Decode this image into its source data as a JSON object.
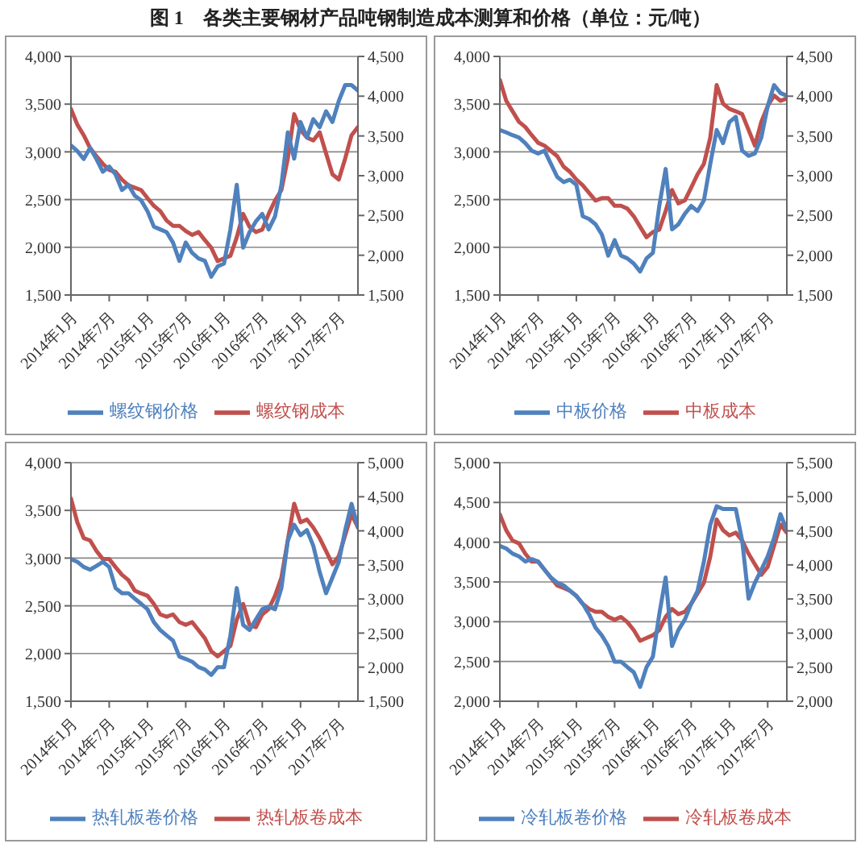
{
  "chart_data": [
    {
      "type": "line",
      "title": "图 1　各类主要钢材产品吨钢制造成本测算和价格（单位：元/吨）",
      "x": [
        "2014-01",
        "2014-02",
        "2014-03",
        "2014-04",
        "2014-05",
        "2014-06",
        "2014-07",
        "2014-08",
        "2014-09",
        "2014-10",
        "2014-11",
        "2014-12",
        "2015-01",
        "2015-02",
        "2015-03",
        "2015-04",
        "2015-05",
        "2015-06",
        "2015-07",
        "2015-08",
        "2015-09",
        "2015-10",
        "2015-11",
        "2015-12",
        "2016-01",
        "2016-02",
        "2016-03",
        "2016-04",
        "2016-05",
        "2016-06",
        "2016-07",
        "2016-08",
        "2016-09",
        "2016-10",
        "2016-11",
        "2016-12",
        "2017-01",
        "2017-02",
        "2017-03",
        "2017-04",
        "2017-05",
        "2017-06",
        "2017-07",
        "2017-08",
        "2017-09",
        "2017-10"
      ],
      "xlim": [
        "2014-01",
        "2017-10"
      ],
      "xticks": [
        {
          "value": "2014-01",
          "label": "2014年1月"
        },
        {
          "value": "2014-07",
          "label": "2014年7月"
        },
        {
          "value": "2015-01",
          "label": "2015年1月"
        },
        {
          "value": "2015-07",
          "label": "2015年7月"
        },
        {
          "value": "2016-01",
          "label": "2016年1月"
        },
        {
          "value": "2016-07",
          "label": "2016年7月"
        },
        {
          "value": "2017-01",
          "label": "2017年1月"
        },
        {
          "value": "2017-07",
          "label": "2017年7月"
        }
      ],
      "ylim": [
        1500,
        4000
      ],
      "yticks": [
        {
          "value": 1500,
          "label": "1,500"
        },
        {
          "value": 2000,
          "label": "2,000"
        },
        {
          "value": 2500,
          "label": "2,500"
        },
        {
          "value": 3000,
          "label": "3,000"
        },
        {
          "value": 3500,
          "label": "3,500"
        },
        {
          "value": 4000,
          "label": "4,000"
        }
      ],
      "y2lim": [
        1500,
        4500
      ],
      "y2ticks": [
        {
          "value": 1500,
          "label": "1,500"
        },
        {
          "value": 2000,
          "label": "2,000"
        },
        {
          "value": 2500,
          "label": "2,500"
        },
        {
          "value": 3000,
          "label": "3,000"
        },
        {
          "value": 3500,
          "label": "3,500"
        },
        {
          "value": 4000,
          "label": "4,000"
        },
        {
          "value": 4500,
          "label": "4,500"
        }
      ],
      "grid": "y",
      "legend": "bottom",
      "marker": "none",
      "line_style": "solid",
      "series": [
        {
          "name": "螺纹钢成本",
          "color": "#c0504d",
          "values": [
            3450,
            3285,
            3175,
            3040,
            2955,
            2875,
            2810,
            2790,
            2710,
            2650,
            2625,
            2600,
            2515,
            2435,
            2380,
            2280,
            2225,
            2225,
            2170,
            2130,
            2160,
            2075,
            1995,
            1855,
            1885,
            1910,
            2105,
            2350,
            2215,
            2160,
            2185,
            2350,
            2490,
            2600,
            2930,
            3395,
            3230,
            3150,
            3120,
            3205,
            2985,
            2765,
            2710,
            2930,
            3175,
            3260
          ]
        },
        {
          "name": "螺纹钢价格",
          "color": "#4f81bd",
          "axis": "y2",
          "values": [
            3380,
            3310,
            3210,
            3350,
            3210,
            3050,
            3115,
            3015,
            2820,
            2885,
            2750,
            2690,
            2555,
            2360,
            2325,
            2290,
            2160,
            1930,
            2160,
            2030,
            1960,
            1930,
            1730,
            1860,
            1895,
            2325,
            2885,
            2095,
            2290,
            2425,
            2520,
            2325,
            2490,
            2885,
            3545,
            3215,
            3675,
            3480,
            3710,
            3610,
            3810,
            3675,
            3940,
            4140,
            4140,
            4070
          ]
        }
      ]
    },
    {
      "type": "line",
      "x": [
        "2014-01",
        "2014-02",
        "2014-03",
        "2014-04",
        "2014-05",
        "2014-06",
        "2014-07",
        "2014-08",
        "2014-09",
        "2014-10",
        "2014-11",
        "2014-12",
        "2015-01",
        "2015-02",
        "2015-03",
        "2015-04",
        "2015-05",
        "2015-06",
        "2015-07",
        "2015-08",
        "2015-09",
        "2015-10",
        "2015-11",
        "2015-12",
        "2016-01",
        "2016-02",
        "2016-03",
        "2016-04",
        "2016-05",
        "2016-06",
        "2016-07",
        "2016-08",
        "2016-09",
        "2016-10",
        "2016-11",
        "2016-12",
        "2017-01",
        "2017-02",
        "2017-03",
        "2017-04",
        "2017-05",
        "2017-06",
        "2017-07",
        "2017-08",
        "2017-09",
        "2017-10"
      ],
      "xlim": [
        "2014-01",
        "2017-10"
      ],
      "xticks": [
        {
          "value": "2014-01",
          "label": "2014年1月"
        },
        {
          "value": "2014-07",
          "label": "2014年7月"
        },
        {
          "value": "2015-01",
          "label": "2015年1月"
        },
        {
          "value": "2015-07",
          "label": "2015年7月"
        },
        {
          "value": "2016-01",
          "label": "2016年1月"
        },
        {
          "value": "2016-07",
          "label": "2016年7月"
        },
        {
          "value": "2017-01",
          "label": "2017年1月"
        },
        {
          "value": "2017-07",
          "label": "2017年7月"
        }
      ],
      "ylim": [
        1500,
        4000
      ],
      "yticks": [
        {
          "value": 1500,
          "label": "1,500"
        },
        {
          "value": 2000,
          "label": "2,000"
        },
        {
          "value": 2500,
          "label": "2,500"
        },
        {
          "value": 3000,
          "label": "3,000"
        },
        {
          "value": 3500,
          "label": "3,500"
        },
        {
          "value": 4000,
          "label": "4,000"
        }
      ],
      "y2lim": [
        1500,
        4500
      ],
      "y2ticks": [
        {
          "value": 1500,
          "label": "1,500"
        },
        {
          "value": 2000,
          "label": "2,000"
        },
        {
          "value": 2500,
          "label": "2,500"
        },
        {
          "value": 3000,
          "label": "3,000"
        },
        {
          "value": 3500,
          "label": "3,500"
        },
        {
          "value": 4000,
          "label": "4,000"
        },
        {
          "value": 4500,
          "label": "4,500"
        }
      ],
      "grid": "y",
      "legend": "bottom",
      "marker": "none",
      "line_style": "solid",
      "series": [
        {
          "name": "中板成本",
          "color": "#c0504d",
          "values": [
            3755,
            3535,
            3425,
            3315,
            3260,
            3175,
            3095,
            3065,
            3010,
            2955,
            2845,
            2790,
            2710,
            2650,
            2570,
            2490,
            2515,
            2515,
            2435,
            2435,
            2405,
            2325,
            2215,
            2105,
            2160,
            2185,
            2380,
            2600,
            2460,
            2490,
            2625,
            2765,
            2875,
            3150,
            3700,
            3505,
            3450,
            3425,
            3395,
            3230,
            3065,
            3315,
            3480,
            3590,
            3535,
            3560
          ]
        },
        {
          "name": "中板价格",
          "color": "#4f81bd",
          "axis": "y2",
          "values": [
            3575,
            3545,
            3510,
            3480,
            3410,
            3315,
            3280,
            3315,
            3150,
            2985,
            2920,
            2950,
            2885,
            2490,
            2455,
            2390,
            2260,
            1995,
            2190,
            1995,
            1960,
            1895,
            1795,
            1960,
            2030,
            2620,
            3085,
            2325,
            2390,
            2520,
            2620,
            2555,
            2690,
            3150,
            3575,
            3410,
            3675,
            3740,
            3315,
            3250,
            3280,
            3480,
            3875,
            4140,
            4040,
            4005
          ]
        }
      ]
    },
    {
      "type": "line",
      "x": [
        "2014-01",
        "2014-02",
        "2014-03",
        "2014-04",
        "2014-05",
        "2014-06",
        "2014-07",
        "2014-08",
        "2014-09",
        "2014-10",
        "2014-11",
        "2014-12",
        "2015-01",
        "2015-02",
        "2015-03",
        "2015-04",
        "2015-05",
        "2015-06",
        "2015-07",
        "2015-08",
        "2015-09",
        "2015-10",
        "2015-11",
        "2015-12",
        "2016-01",
        "2016-02",
        "2016-03",
        "2016-04",
        "2016-05",
        "2016-06",
        "2016-07",
        "2016-08",
        "2016-09",
        "2016-10",
        "2016-11",
        "2016-12",
        "2017-01",
        "2017-02",
        "2017-03",
        "2017-04",
        "2017-05",
        "2017-06",
        "2017-07",
        "2017-08",
        "2017-09",
        "2017-10"
      ],
      "xlim": [
        "2014-01",
        "2017-10"
      ],
      "xticks": [
        {
          "value": "2014-01",
          "label": "2014年1月"
        },
        {
          "value": "2014-07",
          "label": "2014年7月"
        },
        {
          "value": "2015-01",
          "label": "2015年1月"
        },
        {
          "value": "2015-07",
          "label": "2015年7月"
        },
        {
          "value": "2016-01",
          "label": "2016年1月"
        },
        {
          "value": "2016-07",
          "label": "2016年7月"
        },
        {
          "value": "2017-01",
          "label": "2017年1月"
        },
        {
          "value": "2017-07",
          "label": "2017年7月"
        }
      ],
      "ylim": [
        1500,
        4000
      ],
      "yticks": [
        {
          "value": 1500,
          "label": "1,500"
        },
        {
          "value": 2000,
          "label": "2,000"
        },
        {
          "value": 2500,
          "label": "2,500"
        },
        {
          "value": 3000,
          "label": "3,000"
        },
        {
          "value": 3500,
          "label": "3,500"
        },
        {
          "value": 4000,
          "label": "4,000"
        }
      ],
      "y2lim": [
        1500,
        5000
      ],
      "y2ticks": [
        {
          "value": 1500,
          "label": "1,500"
        },
        {
          "value": 2000,
          "label": "2,000"
        },
        {
          "value": 2500,
          "label": "2,500"
        },
        {
          "value": 3000,
          "label": "3,000"
        },
        {
          "value": 3500,
          "label": "3,500"
        },
        {
          "value": 4000,
          "label": "4,000"
        },
        {
          "value": 4500,
          "label": "4,500"
        },
        {
          "value": 5000,
          "label": "5,000"
        }
      ],
      "grid": "y",
      "legend": "bottom",
      "marker": "none",
      "line_style": "solid",
      "series": [
        {
          "name": "热轧板卷成本",
          "color": "#c0504d",
          "values": [
            3625,
            3375,
            3210,
            3185,
            3075,
            2990,
            2990,
            2905,
            2825,
            2770,
            2660,
            2630,
            2605,
            2520,
            2410,
            2385,
            2410,
            2330,
            2300,
            2330,
            2245,
            2160,
            2025,
            1970,
            2025,
            2080,
            2355,
            2520,
            2300,
            2275,
            2410,
            2465,
            2605,
            2795,
            3185,
            3570,
            3375,
            3405,
            3320,
            3210,
            3075,
            2935,
            3020,
            3240,
            3460,
            3320
          ]
        },
        {
          "name": "热轧板卷价格",
          "color": "#4f81bd",
          "axis": "y2",
          "values": [
            3585,
            3545,
            3470,
            3430,
            3485,
            3545,
            3470,
            3160,
            3085,
            3085,
            3005,
            2930,
            2850,
            2660,
            2545,
            2465,
            2390,
            2155,
            2120,
            2080,
            2000,
            1965,
            1885,
            2000,
            2000,
            2465,
            3160,
            2620,
            2545,
            2700,
            2850,
            2890,
            2850,
            3160,
            3855,
            4090,
            3935,
            4010,
            3780,
            3395,
            3085,
            3315,
            3545,
            4010,
            4395,
            4050
          ]
        }
      ]
    },
    {
      "type": "line",
      "x": [
        "2014-01",
        "2014-02",
        "2014-03",
        "2014-04",
        "2014-05",
        "2014-06",
        "2014-07",
        "2014-08",
        "2014-09",
        "2014-10",
        "2014-11",
        "2014-12",
        "2015-01",
        "2015-02",
        "2015-03",
        "2015-04",
        "2015-05",
        "2015-06",
        "2015-07",
        "2015-08",
        "2015-09",
        "2015-10",
        "2015-11",
        "2015-12",
        "2016-01",
        "2016-02",
        "2016-03",
        "2016-04",
        "2016-05",
        "2016-06",
        "2016-07",
        "2016-08",
        "2016-09",
        "2016-10",
        "2016-11",
        "2016-12",
        "2017-01",
        "2017-02",
        "2017-03",
        "2017-04",
        "2017-05",
        "2017-06",
        "2017-07",
        "2017-08",
        "2017-09",
        "2017-10"
      ],
      "xlim": [
        "2014-01",
        "2017-10"
      ],
      "xticks": [
        {
          "value": "2014-01",
          "label": "2014年1月"
        },
        {
          "value": "2014-07",
          "label": "2014年7月"
        },
        {
          "value": "2015-01",
          "label": "2015年1月"
        },
        {
          "value": "2015-07",
          "label": "2015年7月"
        },
        {
          "value": "2016-01",
          "label": "2016年1月"
        },
        {
          "value": "2016-07",
          "label": "2016年7月"
        },
        {
          "value": "2017-01",
          "label": "2017年1月"
        },
        {
          "value": "2017-07",
          "label": "2017年7月"
        }
      ],
      "ylim": [
        2000,
        5000
      ],
      "yticks": [
        {
          "value": 2000,
          "label": "2,000"
        },
        {
          "value": 2500,
          "label": "2,500"
        },
        {
          "value": 3000,
          "label": "3,000"
        },
        {
          "value": 3500,
          "label": "3,500"
        },
        {
          "value": 4000,
          "label": "4,000"
        },
        {
          "value": 4500,
          "label": "4,500"
        },
        {
          "value": 5000,
          "label": "5,000"
        }
      ],
      "y2lim": [
        2000,
        5500
      ],
      "y2ticks": [
        {
          "value": 2000,
          "label": "2,000"
        },
        {
          "value": 2500,
          "label": "2,500"
        },
        {
          "value": 3000,
          "label": "3,000"
        },
        {
          "value": 3500,
          "label": "3,500"
        },
        {
          "value": 4000,
          "label": "4,000"
        },
        {
          "value": 4500,
          "label": "4,500"
        },
        {
          "value": 5000,
          "label": "5,000"
        },
        {
          "value": 5500,
          "label": "5,500"
        }
      ],
      "grid": "y",
      "legend": "bottom",
      "marker": "none",
      "line_style": "solid",
      "series": [
        {
          "name": "冷轧板卷成本",
          "color": "#c0504d",
          "values": [
            4350,
            4150,
            4020,
            3985,
            3855,
            3755,
            3755,
            3655,
            3555,
            3455,
            3425,
            3390,
            3325,
            3225,
            3160,
            3125,
            3125,
            3060,
            3025,
            3060,
            2995,
            2895,
            2760,
            2795,
            2830,
            2895,
            3060,
            3160,
            3095,
            3125,
            3225,
            3355,
            3490,
            3820,
            4285,
            4150,
            4085,
            4120,
            4020,
            3855,
            3720,
            3590,
            3690,
            3955,
            4220,
            4120
          ]
        },
        {
          "name": "冷轧板卷价格",
          "color": "#4f81bd",
          "axis": "y2",
          "values": [
            4280,
            4240,
            4165,
            4125,
            4050,
            4085,
            4050,
            3930,
            3815,
            3740,
            3700,
            3620,
            3545,
            3430,
            3275,
            3080,
            2965,
            2810,
            2580,
            2580,
            2500,
            2425,
            2210,
            2500,
            2655,
            3275,
            3815,
            2810,
            3045,
            3195,
            3430,
            3620,
            4050,
            4590,
            4860,
            4820,
            4820,
            4820,
            4355,
            3505,
            3740,
            3930,
            4125,
            4395,
            4745,
            4510
          ]
        }
      ]
    }
  ]
}
